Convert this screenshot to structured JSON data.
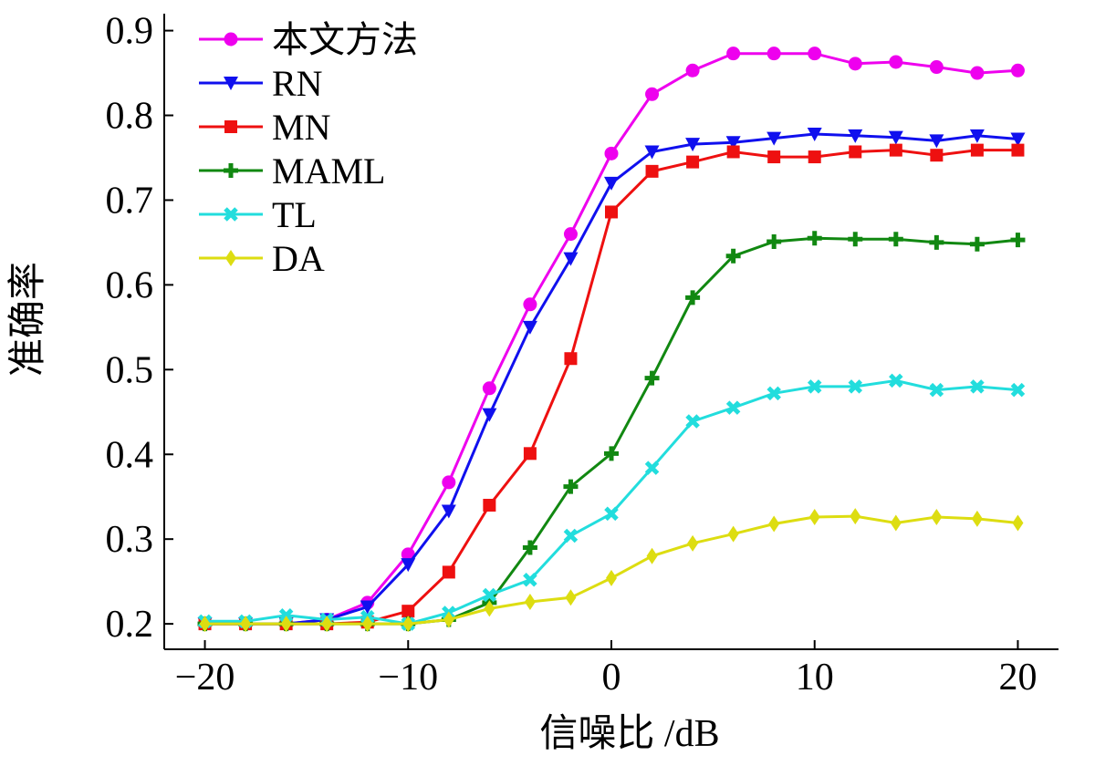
{
  "chart_data": {
    "type": "line",
    "title": "",
    "xlabel": "信噪比 /dB",
    "ylabel": "准确率",
    "xlim": [
      -22,
      22
    ],
    "ylim": [
      0.17,
      0.92
    ],
    "x": [
      -20,
      -18,
      -16,
      -14,
      -12,
      -10,
      -8,
      -6,
      -4,
      -2,
      0,
      2,
      4,
      6,
      8,
      10,
      12,
      14,
      16,
      18,
      20
    ],
    "xticks": [
      -20,
      -10,
      0,
      10,
      20
    ],
    "xtick_labels": [
      "−20",
      "−10",
      "0",
      "10",
      "20"
    ],
    "yticks": [
      0.2,
      0.3,
      0.4,
      0.5,
      0.6,
      0.7,
      0.8,
      0.9
    ],
    "ytick_labels": [
      "0.2",
      "0.3",
      "0.4",
      "0.5",
      "0.6",
      "0.7",
      "0.8",
      "0.9"
    ],
    "grid": false,
    "legend_position": "top-left",
    "series": [
      {
        "name": "本文方法",
        "color": "#ee00ee",
        "marker": "circle",
        "values": [
          0.2,
          0.2,
          0.2,
          0.205,
          0.225,
          0.282,
          0.367,
          0.478,
          0.577,
          0.66,
          0.755,
          0.825,
          0.853,
          0.873,
          0.873,
          0.873,
          0.861,
          0.863,
          0.857,
          0.85,
          0.853
        ]
      },
      {
        "name": "RN",
        "color": "#1010ee",
        "marker": "triangle-down",
        "values": [
          0.2,
          0.2,
          0.2,
          0.205,
          0.22,
          0.27,
          0.333,
          0.447,
          0.55,
          0.631,
          0.72,
          0.757,
          0.766,
          0.768,
          0.773,
          0.778,
          0.776,
          0.774,
          0.77,
          0.776,
          0.772
        ]
      },
      {
        "name": "MN",
        "color": "#ee1010",
        "marker": "square",
        "values": [
          0.2,
          0.2,
          0.2,
          0.2,
          0.202,
          0.215,
          0.261,
          0.34,
          0.401,
          0.513,
          0.686,
          0.734,
          0.745,
          0.757,
          0.751,
          0.751,
          0.757,
          0.759,
          0.753,
          0.759,
          0.759
        ]
      },
      {
        "name": "MAML",
        "color": "#118811",
        "marker": "plus",
        "values": [
          0.2,
          0.2,
          0.2,
          0.2,
          0.2,
          0.2,
          0.205,
          0.225,
          0.29,
          0.362,
          0.401,
          0.49,
          0.585,
          0.634,
          0.651,
          0.655,
          0.654,
          0.654,
          0.65,
          0.648,
          0.653
        ]
      },
      {
        "name": "TL",
        "color": "#22dddd",
        "marker": "x",
        "values": [
          0.203,
          0.203,
          0.21,
          0.205,
          0.208,
          0.2,
          0.213,
          0.234,
          0.252,
          0.304,
          0.33,
          0.384,
          0.439,
          0.455,
          0.472,
          0.48,
          0.48,
          0.487,
          0.476,
          0.48,
          0.476
        ]
      },
      {
        "name": "DA",
        "color": "#dddd11",
        "marker": "diamond",
        "values": [
          0.2,
          0.2,
          0.2,
          0.2,
          0.2,
          0.2,
          0.205,
          0.218,
          0.226,
          0.231,
          0.254,
          0.28,
          0.295,
          0.306,
          0.318,
          0.326,
          0.327,
          0.319,
          0.326,
          0.324,
          0.319
        ]
      }
    ]
  }
}
